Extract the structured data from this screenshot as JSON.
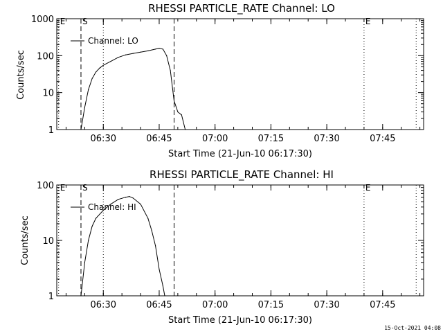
{
  "chart_data": [
    {
      "type": "line",
      "title": "RHESSI PARTICLE_RATE Channel: LO",
      "xlabel": "Start Time (21-Jun-10 06:17:30)",
      "ylabel": "Counts/sec",
      "y_scale": "log",
      "ylim": [
        1,
        1000
      ],
      "xlim": [
        "06:17:30",
        "07:56:00"
      ],
      "x_ticks": [
        "06:30",
        "06:45",
        "07:00",
        "07:15",
        "07:30",
        "07:45"
      ],
      "y_ticks": [
        "1",
        "10",
        "100",
        "1000"
      ],
      "legend": {
        "position": "top-left",
        "entries": [
          "Channel: LO"
        ]
      },
      "markers": [
        {
          "time": "06:18",
          "label": "E",
          "style": "dotted"
        },
        {
          "time": "06:24",
          "label": "S",
          "style": "dashed"
        },
        {
          "time": "06:49",
          "label": "",
          "style": "dashed"
        },
        {
          "time": "06:30",
          "label": "",
          "style": "dotted"
        },
        {
          "time": "07:40",
          "label": "E",
          "style": "dotted"
        },
        {
          "time": "07:54",
          "label": "",
          "style": "dotted"
        }
      ],
      "series": [
        {
          "x": [
            "06:24:00",
            "06:25:00",
            "06:26:00",
            "06:27:00",
            "06:28:00",
            "06:29:00",
            "06:30:00",
            "06:32:00",
            "06:34:00",
            "06:36:00",
            "06:38:00",
            "06:40:00",
            "06:42:00",
            "06:44:00",
            "06:45:00",
            "06:46:00",
            "06:47:00",
            "06:48:00",
            "06:49:00",
            "06:50:00",
            "06:51:00",
            "06:52:00"
          ],
          "y": [
            1,
            4,
            12,
            24,
            36,
            46,
            55,
            70,
            90,
            105,
            115,
            125,
            135,
            150,
            158,
            150,
            100,
            40,
            6,
            3,
            2.5,
            1
          ]
        }
      ]
    },
    {
      "type": "line",
      "title": "RHESSI PARTICLE_RATE Channel: HI",
      "xlabel": "Start Time (21-Jun-10 06:17:30)",
      "ylabel": "Counts/sec",
      "y_scale": "log",
      "ylim": [
        1,
        100
      ],
      "xlim": [
        "06:17:30",
        "07:56:00"
      ],
      "x_ticks": [
        "06:30",
        "06:45",
        "07:00",
        "07:15",
        "07:30",
        "07:45"
      ],
      "y_ticks": [
        "1",
        "10",
        "100"
      ],
      "legend": {
        "position": "top-left",
        "entries": [
          "Channel: HI"
        ]
      },
      "markers": [
        {
          "time": "06:18",
          "label": "E",
          "style": "dotted"
        },
        {
          "time": "06:24",
          "label": "S",
          "style": "dashed"
        },
        {
          "time": "06:49",
          "label": "",
          "style": "dashed"
        },
        {
          "time": "06:30",
          "label": "",
          "style": "dotted"
        },
        {
          "time": "07:40",
          "label": "E",
          "style": "dotted"
        },
        {
          "time": "07:54",
          "label": "",
          "style": "dotted"
        }
      ],
      "series": [
        {
          "x": [
            "06:24:00",
            "06:25:00",
            "06:26:00",
            "06:27:00",
            "06:28:00",
            "06:30:00",
            "06:32:00",
            "06:34:00",
            "06:36:00",
            "06:37:00",
            "06:38:00",
            "06:40:00",
            "06:42:00",
            "06:43:00",
            "06:44:00",
            "06:45:00",
            "06:46:00",
            "06:46:30"
          ],
          "y": [
            1,
            4,
            10,
            18,
            25,
            35,
            45,
            55,
            60,
            62,
            58,
            45,
            25,
            15,
            8,
            3,
            1.5,
            1
          ]
        }
      ]
    }
  ],
  "footer": {
    "timestamp": "15-Oct-2021 04:08"
  }
}
